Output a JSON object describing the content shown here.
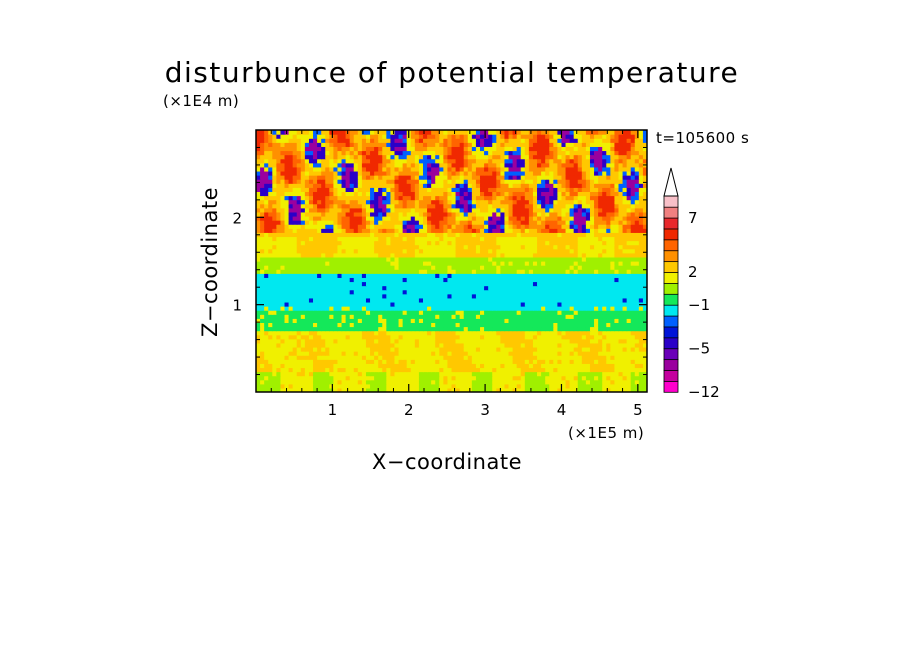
{
  "chart_data": {
    "type": "heatmap",
    "title": "disturbunce of potential temperature",
    "xlabel": "X−coordinate",
    "ylabel": "Z−coordinate",
    "x_multiplier": "(×1E5 m)",
    "y_multiplier": "(×1E4 m)",
    "time_label": "t=105600 s",
    "xlim": [
      0,
      5.12
    ],
    "ylim": [
      0,
      3.0
    ],
    "x_ticks": [
      1,
      2,
      3,
      4,
      5
    ],
    "y_ticks": [
      1,
      2
    ],
    "colorbar": {
      "levels": [
        -12,
        -10,
        -8,
        -6,
        -5,
        -4,
        -3,
        -2,
        -1,
        0,
        1,
        2,
        3,
        4,
        5,
        6,
        7,
        8,
        9
      ],
      "tick_labels": [
        "−12",
        "−5",
        "−1",
        "2",
        "7"
      ],
      "colors": [
        "#ff00cc",
        "#c4009e",
        "#9a009e",
        "#6a00b8",
        "#2a00c8",
        "#0014d8",
        "#0060ff",
        "#00e8f0",
        "#14e85a",
        "#a0f000",
        "#f0f000",
        "#ffc800",
        "#ff9000",
        "#ff6400",
        "#f02800",
        "#e8282c",
        "#f08080",
        "#f8c0c8"
      ]
    },
    "grid": false,
    "legend": "colorbar-right",
    "bands_by_height": [
      {
        "z_range": [
          0.0,
          0.25
        ],
        "dominant": "yellow/green"
      },
      {
        "z_range": [
          0.25,
          0.7
        ],
        "dominant": "orange/yellow"
      },
      {
        "z_range": [
          0.7,
          0.95
        ],
        "dominant": "green"
      },
      {
        "z_range": [
          0.95,
          1.35
        ],
        "dominant": "cyan"
      },
      {
        "z_range": [
          1.35,
          1.8
        ],
        "dominant": "yellow/green"
      },
      {
        "z_range": [
          1.8,
          3.0
        ],
        "dominant": "orange/red with blue/purple cells"
      }
    ]
  }
}
